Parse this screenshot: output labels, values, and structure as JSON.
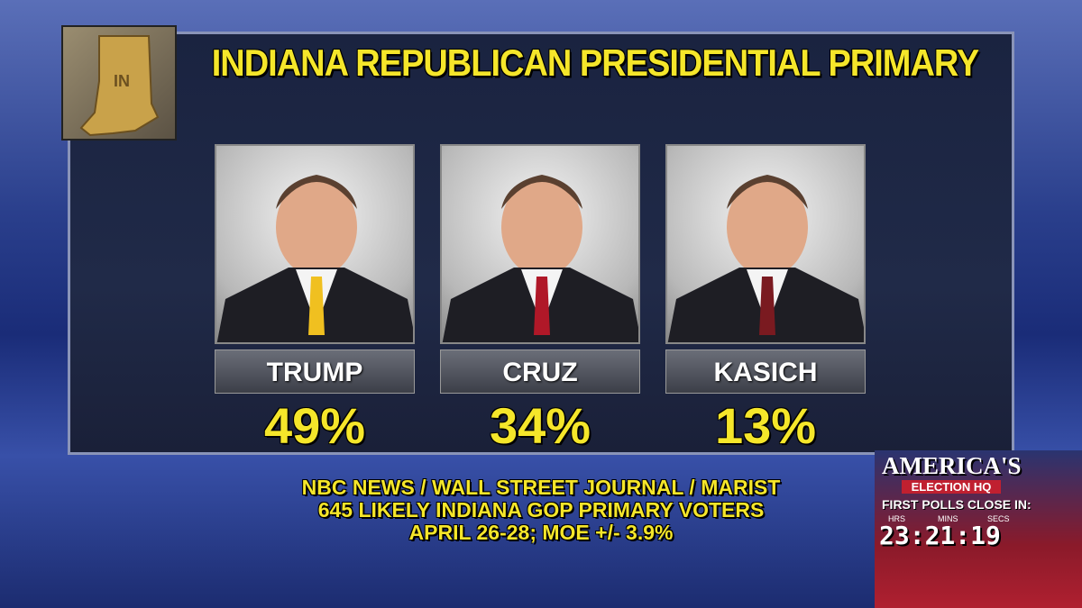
{
  "header": {
    "title": "INDIANA REPUBLICAN PRESIDENTIAL PRIMARY",
    "state": "IN"
  },
  "candidates": [
    {
      "name": "TRUMP",
      "percent": "49%"
    },
    {
      "name": "CRUZ",
      "percent": "34%"
    },
    {
      "name": "KASICH",
      "percent": "13%"
    }
  ],
  "source": [
    "NBC NEWS / WALL STREET JOURNAL / MARIST",
    "645 LIKELY INDIANA GOP PRIMARY VOTERS",
    "APRIL 26-28; MOE +/- 3.9%"
  ],
  "logo": {
    "title": "AMERICA'S",
    "subtitle": "ELECTION HQ",
    "countdown_label": "FIRST POLLS CLOSE IN:",
    "units": [
      "HRS",
      "MINS",
      "SECS"
    ],
    "time": "23:21:19"
  }
}
